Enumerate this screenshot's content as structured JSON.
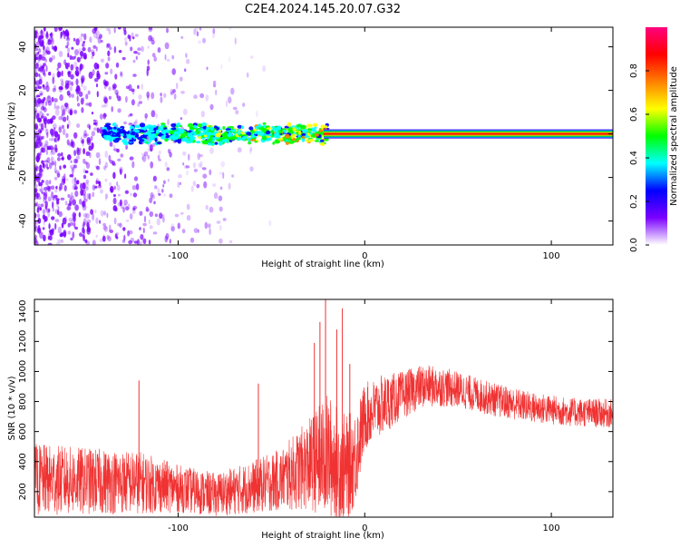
{
  "title": "C2E4.2024.145.20.07.G32",
  "colors": {
    "snr_line": "#f03232",
    "axis": "#000000",
    "signal_core": "#ff0000",
    "signal_edge": "#00c000",
    "scatter": "#7a00ff"
  },
  "chart_data": [
    {
      "type": "heatmap",
      "title": "",
      "xlabel": "Height of straight line (km)",
      "ylabel": "Frequency (Hz)",
      "xlim": [
        -177,
        133
      ],
      "ylim": [
        -51,
        49
      ],
      "x_ticks": [
        -100,
        0,
        100
      ],
      "x_tick_labels": [
        "-100",
        "0",
        "100"
      ],
      "y_ticks": [
        -40,
        -20,
        0,
        20,
        40
      ],
      "y_tick_labels": [
        "-40",
        "-20",
        "0",
        "20",
        "40"
      ],
      "colorbar": {
        "label": "Normalized spectral amplitude",
        "range": [
          0,
          1
        ],
        "ticks": [
          0,
          0.2,
          0.4,
          0.6,
          0.8
        ],
        "tick_labels": [
          "0.0",
          "0.2",
          "0.4",
          "0.6",
          "0.8"
        ],
        "colormap": [
          "#ffffff",
          "#7a00ff",
          "#0000ff",
          "#00ffff",
          "#00ff00",
          "#ffff00",
          "#ff8000",
          "#ff0000",
          "#ff0080"
        ]
      },
      "signal_track": {
        "frequency_hz": 0,
        "x_start": -22,
        "x_end": 133,
        "amplitude": 1.0,
        "noisy_band_x": [
          -140,
          -20
        ],
        "noisy_band_half_width_hz": 5
      },
      "noise": {
        "dense_until_x": -140,
        "fading_until_x": -60
      }
    },
    {
      "type": "line",
      "title": "",
      "xlabel": "Height of straight line (km)",
      "ylabel": "SNR (10 * v/v)",
      "xlim": [
        -177,
        133
      ],
      "ylim": [
        30,
        1480
      ],
      "x_ticks": [
        -100,
        0,
        100
      ],
      "x_tick_labels": [
        "-100",
        "0",
        "100"
      ],
      "y_ticks": [
        200,
        400,
        600,
        800,
        1000,
        1200,
        1400
      ],
      "y_tick_labels": [
        "200",
        "400",
        "600",
        "800",
        "1000",
        "1200",
        "1400"
      ],
      "envelope": {
        "x": [
          -177,
          -150,
          -120,
          -100,
          -80,
          -60,
          -45,
          -30,
          -20,
          -10,
          -5,
          0,
          10,
          20,
          30,
          40,
          50,
          70,
          90,
          110,
          133
        ],
        "mean": [
          280,
          270,
          260,
          220,
          180,
          230,
          280,
          380,
          440,
          350,
          430,
          700,
          780,
          840,
          900,
          900,
          880,
          810,
          760,
          730,
          720
        ],
        "spread": [
          300,
          280,
          260,
          200,
          180,
          220,
          260,
          380,
          520,
          450,
          400,
          280,
          250,
          200,
          180,
          170,
          150,
          140,
          130,
          120,
          120
        ]
      },
      "spikes": [
        {
          "x": -27,
          "y": 1190
        },
        {
          "x": -24,
          "y": 1330
        },
        {
          "x": -21,
          "y": 1480
        },
        {
          "x": -15,
          "y": 1280
        },
        {
          "x": -12,
          "y": 1420
        },
        {
          "x": -8,
          "y": 1050
        },
        {
          "x": -57,
          "y": 920
        },
        {
          "x": -121,
          "y": 940
        }
      ]
    }
  ]
}
